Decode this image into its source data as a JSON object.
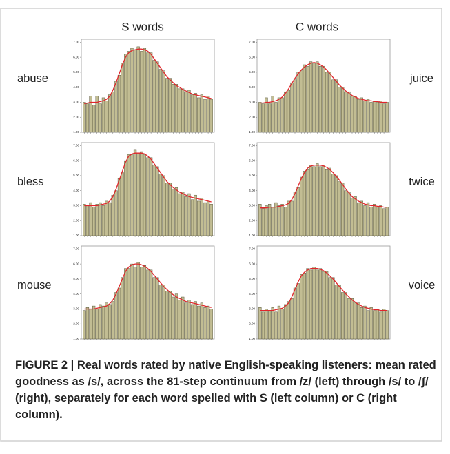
{
  "column_headers": [
    "S words",
    "C words"
  ],
  "caption": "FIGURE 2 | Real words rated by native English-speaking listeners: mean rated goodness as /s/, across the 81-step continuum from /z/ (left) through /s/ to /ʃ/ (right), separately for each word spelled with S (left column) or C (right column).",
  "chart_data": [
    {
      "type": "bar",
      "title": "abuse",
      "color": "#c2bd93",
      "fit_color": "#e0262b",
      "ylim": [
        1,
        7.2
      ],
      "yticks": [
        {
          "value": 1,
          "label": "1.00"
        },
        {
          "value": 2,
          "label": "2.00"
        },
        {
          "value": 3,
          "label": "3.00"
        },
        {
          "value": 4,
          "label": "4.00"
        },
        {
          "value": 5,
          "label": "5.00"
        },
        {
          "value": 6,
          "label": "6.00"
        },
        {
          "value": 7,
          "label": "7.00"
        }
      ],
      "values": [
        3.0,
        2.9,
        3.4,
        2.8,
        3.4,
        2.9,
        3.3,
        3.1,
        3.5,
        3.7,
        4.4,
        4.8,
        5.6,
        6.2,
        6.4,
        6.6,
        6.5,
        6.7,
        6.4,
        6.6,
        6.3,
        6.3,
        5.8,
        5.7,
        5.2,
        5.1,
        4.6,
        4.6,
        4.2,
        4.2,
        3.9,
        3.9,
        3.7,
        3.8,
        3.5,
        3.6,
        3.3,
        3.5,
        3.2,
        3.4,
        3.2
      ],
      "fit_values": [
        2.9,
        2.95,
        3.0,
        3.0,
        3.0,
        3.05,
        3.1,
        3.2,
        3.4,
        3.8,
        4.3,
        4.9,
        5.5,
        6.0,
        6.3,
        6.45,
        6.5,
        6.55,
        6.55,
        6.5,
        6.4,
        6.2,
        5.9,
        5.6,
        5.3,
        5.0,
        4.7,
        4.5,
        4.3,
        4.1,
        4.0,
        3.85,
        3.75,
        3.65,
        3.55,
        3.5,
        3.45,
        3.4,
        3.35,
        3.3,
        3.25
      ]
    },
    {
      "type": "bar",
      "title": "juice",
      "color": "#c2bd93",
      "fit_color": "#e0262b",
      "ylim": [
        1,
        7.2
      ],
      "yticks": [
        {
          "value": 1,
          "label": "1.00"
        },
        {
          "value": 2,
          "label": "2.00"
        },
        {
          "value": 3,
          "label": "3.00"
        },
        {
          "value": 4,
          "label": "4.00"
        },
        {
          "value": 5,
          "label": "5.00"
        },
        {
          "value": 6,
          "label": "6.00"
        },
        {
          "value": 7,
          "label": "7.00"
        }
      ],
      "values": [
        3.0,
        2.9,
        3.3,
        2.9,
        3.4,
        3.0,
        3.3,
        3.3,
        3.7,
        3.8,
        4.3,
        4.5,
        5.0,
        5.1,
        5.5,
        5.4,
        5.7,
        5.6,
        5.7,
        5.4,
        5.4,
        5.0,
        5.0,
        4.5,
        4.5,
        4.0,
        4.0,
        3.7,
        3.7,
        3.4,
        3.4,
        3.2,
        3.3,
        3.1,
        3.2,
        3.0,
        3.1,
        3.0,
        3.1,
        2.9,
        3.0
      ],
      "fit_values": [
        2.95,
        2.95,
        3.0,
        3.0,
        3.05,
        3.1,
        3.2,
        3.35,
        3.6,
        3.9,
        4.25,
        4.6,
        4.9,
        5.15,
        5.35,
        5.5,
        5.6,
        5.65,
        5.6,
        5.5,
        5.35,
        5.15,
        4.9,
        4.65,
        4.4,
        4.15,
        3.95,
        3.75,
        3.6,
        3.45,
        3.35,
        3.25,
        3.2,
        3.15,
        3.1,
        3.1,
        3.05,
        3.05,
        3.0,
        3.0,
        3.0
      ]
    },
    {
      "type": "bar",
      "title": "bless",
      "color": "#c2bd93",
      "fit_color": "#e0262b",
      "ylim": [
        1,
        7.2
      ],
      "yticks": [
        {
          "value": 1,
          "label": "1.00"
        },
        {
          "value": 2,
          "label": "2.00"
        },
        {
          "value": 3,
          "label": "3.00"
        },
        {
          "value": 4,
          "label": "4.00"
        },
        {
          "value": 5,
          "label": "5.00"
        },
        {
          "value": 6,
          "label": "6.00"
        },
        {
          "value": 7,
          "label": "7.00"
        }
      ],
      "values": [
        3.1,
        3.0,
        3.2,
        2.9,
        3.1,
        3.2,
        3.0,
        3.3,
        3.2,
        3.7,
        4.0,
        4.8,
        5.2,
        6.0,
        6.4,
        6.4,
        6.7,
        6.5,
        6.6,
        6.4,
        6.2,
        6.2,
        5.7,
        5.6,
        5.1,
        5.0,
        4.5,
        4.5,
        4.1,
        4.2,
        3.8,
        3.9,
        3.6,
        3.8,
        3.4,
        3.7,
        3.3,
        3.5,
        3.2,
        3.3,
        3.1
      ],
      "fit_values": [
        3.0,
        3.0,
        3.0,
        3.0,
        3.0,
        3.05,
        3.1,
        3.15,
        3.3,
        3.6,
        4.1,
        4.7,
        5.3,
        5.9,
        6.3,
        6.45,
        6.5,
        6.5,
        6.5,
        6.45,
        6.3,
        6.1,
        5.8,
        5.5,
        5.2,
        4.9,
        4.6,
        4.4,
        4.2,
        4.05,
        3.9,
        3.8,
        3.7,
        3.6,
        3.55,
        3.5,
        3.45,
        3.4,
        3.35,
        3.3,
        3.25
      ]
    },
    {
      "type": "bar",
      "title": "twice",
      "color": "#c2bd93",
      "fit_color": "#e0262b",
      "ylim": [
        1,
        7.2
      ],
      "yticks": [
        {
          "value": 1,
          "label": "1.00"
        },
        {
          "value": 2,
          "label": "2.00"
        },
        {
          "value": 3,
          "label": "3.00"
        },
        {
          "value": 4,
          "label": "4.00"
        },
        {
          "value": 5,
          "label": "5.00"
        },
        {
          "value": 6,
          "label": "6.00"
        },
        {
          "value": 7,
          "label": "7.00"
        }
      ],
      "values": [
        3.1,
        2.8,
        3.0,
        3.1,
        2.9,
        3.2,
        3.0,
        3.1,
        2.9,
        3.3,
        3.3,
        3.9,
        4.2,
        4.9,
        5.3,
        5.4,
        5.7,
        5.6,
        5.8,
        5.6,
        5.7,
        5.4,
        5.5,
        5.1,
        5.0,
        4.6,
        4.5,
        4.0,
        3.9,
        3.5,
        3.6,
        3.2,
        3.3,
        3.0,
        3.2,
        2.9,
        3.1,
        2.9,
        3.0,
        2.8,
        2.9
      ],
      "fit_values": [
        2.85,
        2.85,
        2.85,
        2.9,
        2.9,
        2.9,
        2.95,
        3.0,
        3.05,
        3.15,
        3.4,
        3.8,
        4.3,
        4.8,
        5.2,
        5.5,
        5.65,
        5.7,
        5.7,
        5.7,
        5.65,
        5.55,
        5.4,
        5.2,
        4.95,
        4.7,
        4.4,
        4.1,
        3.85,
        3.6,
        3.45,
        3.3,
        3.2,
        3.1,
        3.05,
        3.0,
        3.0,
        2.95,
        2.95,
        2.9,
        2.9
      ]
    },
    {
      "type": "bar",
      "title": "mouse",
      "color": "#c2bd93",
      "fit_color": "#e0262b",
      "ylim": [
        1,
        7.2
      ],
      "yticks": [
        {
          "value": 1,
          "label": "1.00"
        },
        {
          "value": 2,
          "label": "2.00"
        },
        {
          "value": 3,
          "label": "3.00"
        },
        {
          "value": 4,
          "label": "4.00"
        },
        {
          "value": 5,
          "label": "5.00"
        },
        {
          "value": 6,
          "label": "6.00"
        },
        {
          "value": 7,
          "label": "7.00"
        }
      ],
      "values": [
        2.9,
        3.1,
        3.0,
        3.2,
        3.0,
        3.3,
        3.2,
        3.4,
        3.3,
        3.5,
        4.1,
        4.4,
        5.1,
        5.7,
        5.7,
        6.0,
        5.8,
        6.1,
        5.8,
        5.9,
        5.6,
        5.6,
        5.1,
        5.1,
        4.6,
        4.6,
        4.2,
        4.2,
        3.8,
        4.0,
        3.6,
        3.8,
        3.4,
        3.6,
        3.3,
        3.5,
        3.2,
        3.4,
        3.1,
        3.2,
        3.0
      ],
      "fit_values": [
        3.0,
        3.0,
        3.0,
        3.0,
        3.05,
        3.1,
        3.15,
        3.2,
        3.35,
        3.6,
        4.0,
        4.5,
        5.0,
        5.5,
        5.8,
        5.95,
        6.0,
        6.0,
        5.95,
        5.85,
        5.7,
        5.5,
        5.25,
        5.0,
        4.75,
        4.5,
        4.3,
        4.1,
        3.95,
        3.8,
        3.7,
        3.6,
        3.5,
        3.45,
        3.4,
        3.35,
        3.3,
        3.25,
        3.2,
        3.15,
        3.1
      ]
    },
    {
      "type": "bar",
      "title": "voice",
      "color": "#c2bd93",
      "fit_color": "#e0262b",
      "ylim": [
        1,
        7.2
      ],
      "yticks": [
        {
          "value": 1,
          "label": "1.00"
        },
        {
          "value": 2,
          "label": "2.00"
        },
        {
          "value": 3,
          "label": "3.00"
        },
        {
          "value": 4,
          "label": "4.00"
        },
        {
          "value": 5,
          "label": "5.00"
        },
        {
          "value": 6,
          "label": "6.00"
        },
        {
          "value": 7,
          "label": "7.00"
        }
      ],
      "values": [
        3.1,
        2.8,
        3.0,
        2.9,
        3.1,
        2.8,
        3.2,
        3.0,
        3.3,
        3.5,
        3.7,
        4.4,
        4.7,
        5.3,
        5.4,
        5.7,
        5.6,
        5.8,
        5.6,
        5.7,
        5.5,
        5.5,
        5.1,
        5.1,
        4.6,
        4.6,
        4.1,
        4.1,
        3.7,
        3.7,
        3.4,
        3.4,
        3.1,
        3.2,
        2.9,
        3.1,
        2.9,
        3.0,
        2.8,
        3.0,
        2.9
      ],
      "fit_values": [
        2.9,
        2.9,
        2.9,
        2.9,
        2.9,
        2.95,
        3.0,
        3.05,
        3.2,
        3.4,
        3.8,
        4.3,
        4.8,
        5.2,
        5.45,
        5.6,
        5.7,
        5.7,
        5.7,
        5.65,
        5.55,
        5.4,
        5.2,
        5.0,
        4.75,
        4.5,
        4.25,
        4.0,
        3.8,
        3.6,
        3.45,
        3.3,
        3.2,
        3.1,
        3.05,
        3.0,
        2.95,
        2.95,
        2.9,
        2.9,
        2.9
      ]
    }
  ]
}
